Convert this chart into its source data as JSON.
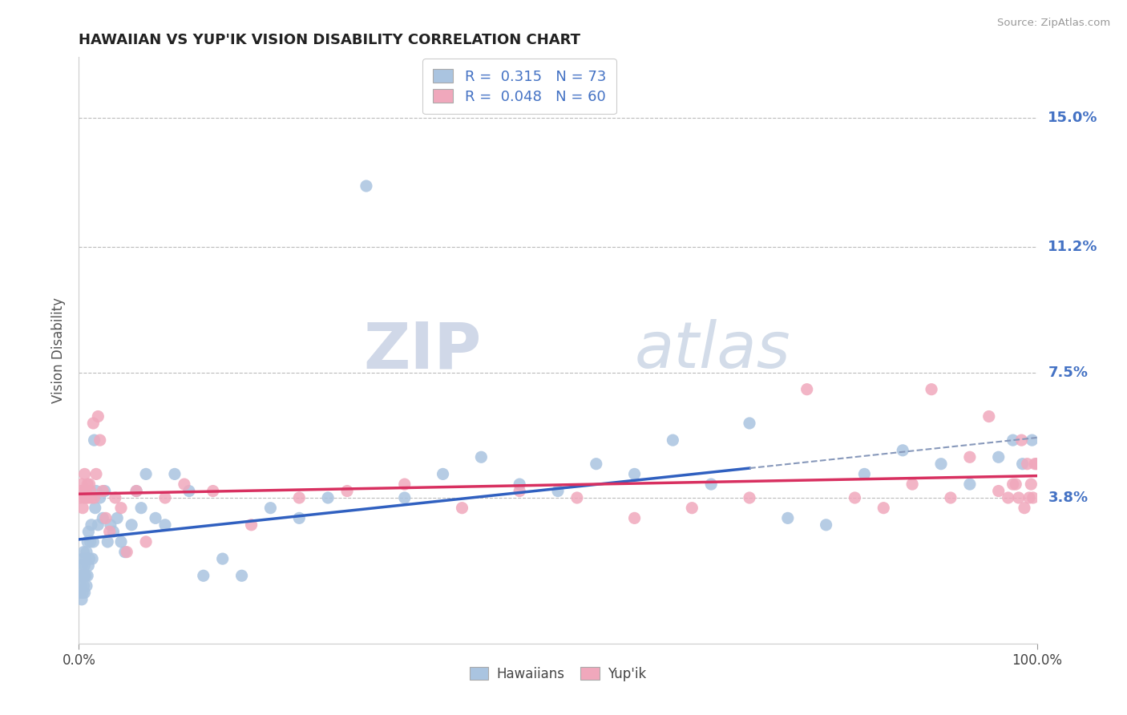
{
  "title": "HAWAIIAN VS YUP'IK VISION DISABILITY CORRELATION CHART",
  "source": "Source: ZipAtlas.com",
  "ylabel": "Vision Disability",
  "xlim": [
    0.0,
    1.0
  ],
  "ylim": [
    -0.005,
    0.168
  ],
  "yticks": [
    0.038,
    0.075,
    0.112,
    0.15
  ],
  "ytick_labels": [
    "3.8%",
    "7.5%",
    "11.2%",
    "15.0%"
  ],
  "xticks": [
    0.0,
    1.0
  ],
  "xtick_labels": [
    "0.0%",
    "100.0%"
  ],
  "hawaiians_R": "0.315",
  "hawaiians_N": "73",
  "yupik_R": "0.048",
  "yupik_N": "60",
  "hawaiians_color": "#aac4e0",
  "yupik_color": "#f0a8bc",
  "trend_hawaiians_color": "#3060c0",
  "trend_yupik_color": "#d83060",
  "watermark_zip": "ZIP",
  "watermark_atlas": "atlas",
  "background_color": "#ffffff",
  "grid_color": "#bbbbbb",
  "title_color": "#222222",
  "axis_label_color": "#4472c4",
  "hawaiians_x": [
    0.001,
    0.002,
    0.002,
    0.003,
    0.003,
    0.004,
    0.004,
    0.005,
    0.005,
    0.005,
    0.006,
    0.006,
    0.007,
    0.007,
    0.008,
    0.008,
    0.009,
    0.009,
    0.01,
    0.01,
    0.011,
    0.012,
    0.013,
    0.014,
    0.015,
    0.016,
    0.017,
    0.018,
    0.02,
    0.022,
    0.025,
    0.027,
    0.03,
    0.033,
    0.036,
    0.04,
    0.044,
    0.048,
    0.055,
    0.06,
    0.065,
    0.07,
    0.08,
    0.09,
    0.1,
    0.115,
    0.13,
    0.15,
    0.17,
    0.2,
    0.23,
    0.26,
    0.3,
    0.34,
    0.38,
    0.42,
    0.46,
    0.5,
    0.54,
    0.58,
    0.62,
    0.66,
    0.7,
    0.74,
    0.78,
    0.82,
    0.86,
    0.9,
    0.93,
    0.96,
    0.975,
    0.985,
    0.995
  ],
  "hawaiians_y": [
    0.01,
    0.012,
    0.015,
    0.008,
    0.018,
    0.01,
    0.02,
    0.012,
    0.015,
    0.022,
    0.01,
    0.018,
    0.015,
    0.02,
    0.012,
    0.022,
    0.015,
    0.025,
    0.018,
    0.028,
    0.02,
    0.025,
    0.03,
    0.02,
    0.025,
    0.055,
    0.035,
    0.04,
    0.03,
    0.038,
    0.032,
    0.04,
    0.025,
    0.03,
    0.028,
    0.032,
    0.025,
    0.022,
    0.03,
    0.04,
    0.035,
    0.045,
    0.032,
    0.03,
    0.045,
    0.04,
    0.015,
    0.02,
    0.015,
    0.035,
    0.032,
    0.038,
    0.13,
    0.038,
    0.045,
    0.05,
    0.042,
    0.04,
    0.048,
    0.045,
    0.055,
    0.042,
    0.06,
    0.032,
    0.03,
    0.045,
    0.052,
    0.048,
    0.042,
    0.05,
    0.055,
    0.048,
    0.055
  ],
  "yupik_x": [
    0.001,
    0.002,
    0.003,
    0.004,
    0.005,
    0.006,
    0.007,
    0.008,
    0.009,
    0.01,
    0.011,
    0.012,
    0.013,
    0.015,
    0.016,
    0.018,
    0.02,
    0.022,
    0.025,
    0.028,
    0.032,
    0.038,
    0.044,
    0.05,
    0.06,
    0.07,
    0.09,
    0.11,
    0.14,
    0.18,
    0.23,
    0.28,
    0.34,
    0.4,
    0.46,
    0.52,
    0.58,
    0.64,
    0.7,
    0.76,
    0.81,
    0.84,
    0.87,
    0.89,
    0.91,
    0.93,
    0.95,
    0.96,
    0.97,
    0.975,
    0.978,
    0.981,
    0.984,
    0.987,
    0.99,
    0.992,
    0.994,
    0.996,
    0.998,
    1.0
  ],
  "yupik_y": [
    0.038,
    0.04,
    0.042,
    0.035,
    0.038,
    0.045,
    0.04,
    0.038,
    0.042,
    0.038,
    0.042,
    0.04,
    0.038,
    0.06,
    0.038,
    0.045,
    0.062,
    0.055,
    0.04,
    0.032,
    0.028,
    0.038,
    0.035,
    0.022,
    0.04,
    0.025,
    0.038,
    0.042,
    0.04,
    0.03,
    0.038,
    0.04,
    0.042,
    0.035,
    0.04,
    0.038,
    0.032,
    0.035,
    0.038,
    0.07,
    0.038,
    0.035,
    0.042,
    0.07,
    0.038,
    0.05,
    0.062,
    0.04,
    0.038,
    0.042,
    0.042,
    0.038,
    0.055,
    0.035,
    0.048,
    0.038,
    0.042,
    0.038,
    0.048,
    0.048
  ]
}
